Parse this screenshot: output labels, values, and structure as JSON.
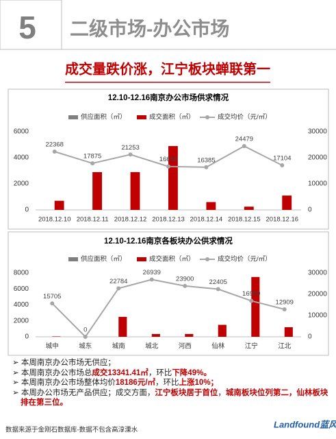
{
  "header": {
    "number": "5",
    "title": "二级市场-办公市场"
  },
  "headline": "成交量跌价涨，江宁板块蝉联第一",
  "chart_data": [
    {
      "type": "bar",
      "title": "12.10-12.16南京办公市场供求情况",
      "categories": [
        "2018.12.10",
        "2018.12.11",
        "2018.12.12",
        "2018.12.13",
        "2018.12.14",
        "2018.12.15",
        "2018.12.16"
      ],
      "series": [
        {
          "name": "供应面积（㎡）",
          "color": "#7f7f7f",
          "values": [
            0,
            0,
            0,
            0,
            0,
            0,
            0
          ]
        },
        {
          "name": "成交面积（㎡）",
          "color": "#c00000",
          "values": [
            700,
            2900,
            2900,
            4900,
            600,
            250,
            1100
          ]
        },
        {
          "name": "成交均价（元/㎡）",
          "color": "#a6a6a6",
          "type": "line",
          "axis": "y2",
          "values": [
            22368,
            17875,
            21253,
            16656,
            16385,
            24479,
            17104
          ]
        }
      ],
      "ylim": [
        0,
        6000
      ],
      "yticks": [
        0,
        2000,
        4000,
        6000
      ],
      "y2lim": [
        0,
        30000
      ],
      "y2ticks": [
        0,
        10000,
        20000,
        30000
      ]
    },
    {
      "type": "bar",
      "title": "12.10-12.16南京各板块办公供求情况",
      "categories": [
        "城中",
        "城东",
        "城南",
        "城北",
        "河西",
        "仙林",
        "江宁",
        "江北"
      ],
      "series": [
        {
          "name": "供应面积（㎡）",
          "color": "#7f7f7f",
          "values": [
            0,
            0,
            0,
            0,
            0,
            0,
            0,
            0
          ]
        },
        {
          "name": "成交面积（㎡）",
          "color": "#c00000",
          "values": [
            50,
            0,
            2500,
            350,
            350,
            1500,
            7500,
            1200
          ]
        },
        {
          "name": "成交均价（元/㎡）",
          "color": "#a6a6a6",
          "type": "line",
          "axis": "y2",
          "values": [
            15705,
            0,
            22784,
            26939,
            23900,
            22405,
            16909,
            12909
          ]
        }
      ],
      "ylim": [
        0,
        8000
      ],
      "yticks": [
        0,
        2000,
        4000,
        6000,
        8000
      ],
      "y2lim": [
        0,
        30000
      ],
      "y2ticks": [
        0,
        10000,
        20000,
        30000
      ]
    }
  ],
  "bullets": [
    [
      {
        "text": "本周南京办公市场无供应；",
        "emphasis": false
      }
    ],
    [
      {
        "text": "本周南京办公市场总",
        "emphasis": false
      },
      {
        "text": "成交13341.41㎡",
        "emphasis": true
      },
      {
        "text": "，环比",
        "emphasis": false
      },
      {
        "text": "下降49%。",
        "emphasis": true
      }
    ],
    [
      {
        "text": "本周南京办公市场整体均价",
        "emphasis": false
      },
      {
        "text": "18186元/㎡",
        "emphasis": true
      },
      {
        "text": "，环比",
        "emphasis": false
      },
      {
        "text": "上涨10%；",
        "emphasis": true
      }
    ],
    [
      {
        "text": "本周办公市场无产品供应；成交方面，",
        "emphasis": false
      },
      {
        "text": "江宁板块居于首位",
        "emphasis": true
      },
      {
        "text": "，",
        "emphasis": false
      },
      {
        "text": "城南板块位列第二，仙林板块排在第三位。",
        "emphasis": true
      }
    ]
  ],
  "footer": {
    "source": "数据来源于金刚石数据库-数据不包含高淳溧水",
    "logo": "Landfound蓝风"
  }
}
